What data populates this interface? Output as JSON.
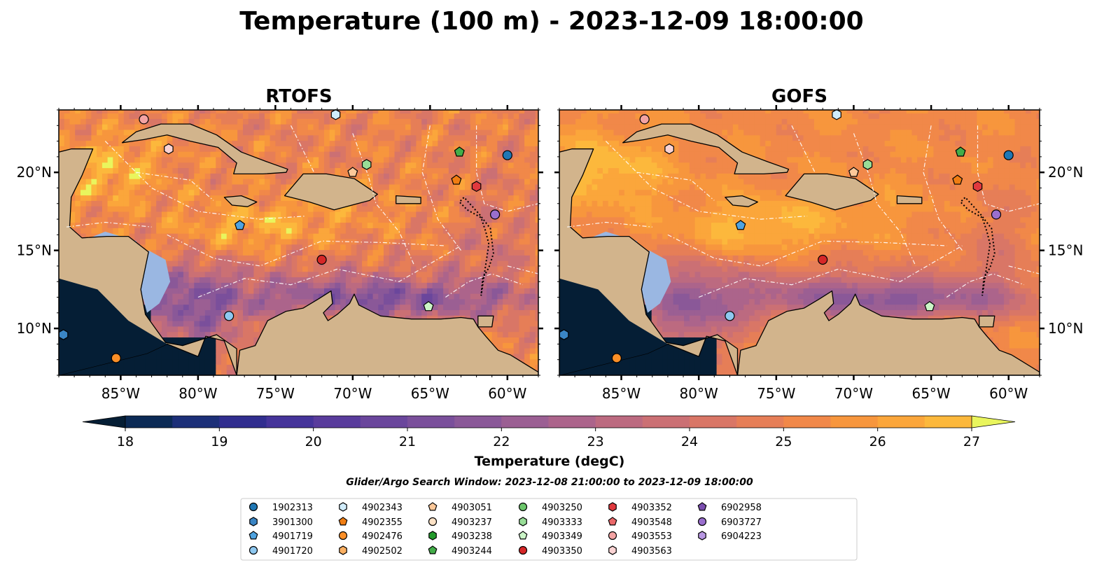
{
  "title": "Temperature (100 m) - 2023-12-09 18:00:00",
  "panels": [
    {
      "title": "RTOFS",
      "model": "rtofs"
    },
    {
      "title": "GOFS",
      "model": "gofs"
    }
  ],
  "map_extent": {
    "lon": [
      -89,
      -58
    ],
    "lat": [
      7,
      24
    ]
  },
  "lon_ticks": [
    {
      "value": -85,
      "label": "85°W"
    },
    {
      "value": -80,
      "label": "80°W"
    },
    {
      "value": -75,
      "label": "75°W"
    },
    {
      "value": -70,
      "label": "70°W"
    },
    {
      "value": -65,
      "label": "65°W"
    },
    {
      "value": -60,
      "label": "60°W"
    }
  ],
  "lat_ticks": [
    {
      "value": 10,
      "label": "10°N"
    },
    {
      "value": 15,
      "label": "15°N"
    },
    {
      "value": 20,
      "label": "20°N"
    }
  ],
  "colorbar": {
    "label": "Temperature (degC)",
    "min": 18,
    "max": 27,
    "step": 0.5,
    "ticks": [
      {
        "value": 18,
        "label": "18"
      },
      {
        "value": 19,
        "label": "19"
      },
      {
        "value": 20,
        "label": "20"
      },
      {
        "value": 21,
        "label": "21"
      },
      {
        "value": 22,
        "label": "22"
      },
      {
        "value": 23,
        "label": "23"
      },
      {
        "value": 24,
        "label": "24"
      },
      {
        "value": 25,
        "label": "25"
      },
      {
        "value": 26,
        "label": "26"
      },
      {
        "value": 27,
        "label": "27"
      }
    ],
    "colors": [
      "#051e35",
      "#0b2a55",
      "#1c2f78",
      "#312e8f",
      "#45349a",
      "#593c9c",
      "#6a469c",
      "#7a4f9b",
      "#8a5898",
      "#9b5f93",
      "#ac648b",
      "#bc6a80",
      "#cb7074",
      "#d97666",
      "#e67e57",
      "#f18849",
      "#f7963d",
      "#fba63b",
      "#fcb83c",
      "#fbcb40",
      "#f6df4a",
      "#e9f55d"
    ],
    "under_color": "#051e35",
    "over_color": "#e9f55d"
  },
  "colors": {
    "land": "#d2b48c",
    "shallow": "#9ab7e2",
    "deep_pacific": "#051e35"
  },
  "search_window": "Glider/Argo Search Window: 2023-12-08 21:00:00 to 2023-12-09 18:00:00",
  "legend": [
    {
      "id": "1902313",
      "color": "#1f77b4",
      "marker": "circle"
    },
    {
      "id": "3901300",
      "color": "#3a85c4",
      "marker": "hexagon"
    },
    {
      "id": "4901719",
      "color": "#4fa3e0",
      "marker": "pentagon"
    },
    {
      "id": "4901720",
      "color": "#8ec8f0",
      "marker": "circle"
    },
    {
      "id": "4902343",
      "color": "#d0ecfb",
      "marker": "hexagon"
    },
    {
      "id": "4902355",
      "color": "#f07d12",
      "marker": "pentagon"
    },
    {
      "id": "4902476",
      "color": "#fb8f27",
      "marker": "circle"
    },
    {
      "id": "4902502",
      "color": "#fbb062",
      "marker": "hexagon"
    },
    {
      "id": "4903051",
      "color": "#fcc899",
      "marker": "pentagon"
    },
    {
      "id": "4903237",
      "color": "#fde2c6",
      "marker": "circle"
    },
    {
      "id": "4903238",
      "color": "#239b2b",
      "marker": "hexagon"
    },
    {
      "id": "4903244",
      "color": "#43ad49",
      "marker": "pentagon"
    },
    {
      "id": "4903250",
      "color": "#6cc66b",
      "marker": "circle"
    },
    {
      "id": "4903333",
      "color": "#98dd97",
      "marker": "hexagon"
    },
    {
      "id": "4903349",
      "color": "#cbf5c7",
      "marker": "pentagon"
    },
    {
      "id": "4903350",
      "color": "#d62728",
      "marker": "circle"
    },
    {
      "id": "4903352",
      "color": "#e0393e",
      "marker": "hexagon"
    },
    {
      "id": "4903548",
      "color": "#ea6869",
      "marker": "pentagon"
    },
    {
      "id": "4903553",
      "color": "#f3a3a3",
      "marker": "circle"
    },
    {
      "id": "4903563",
      "color": "#fad3d3",
      "marker": "hexagon"
    },
    {
      "id": "6902958",
      "color": "#7b4eaf",
      "marker": "pentagon"
    },
    {
      "id": "6903727",
      "color": "#9a6fce",
      "marker": "circle"
    },
    {
      "id": "6904223",
      "color": "#b897e2",
      "marker": "hexagon"
    }
  ],
  "observations": [
    {
      "id": "1902313",
      "lon": -60.0,
      "lat": 21.1
    },
    {
      "id": "3901300",
      "lon": -88.7,
      "lat": 9.6
    },
    {
      "id": "4901719",
      "lon": -77.3,
      "lat": 16.6
    },
    {
      "id": "4901720",
      "lon": -78.0,
      "lat": 10.8
    },
    {
      "id": "4902343",
      "lon": -71.1,
      "lat": 23.7
    },
    {
      "id": "4902355",
      "lon": -63.3,
      "lat": 19.5
    },
    {
      "id": "4902476",
      "lon": -85.3,
      "lat": 8.1
    },
    {
      "id": "4903051",
      "lon": -70.0,
      "lat": 20.0
    },
    {
      "id": "4903333",
      "lon": -69.1,
      "lat": 20.5
    },
    {
      "id": "4903244",
      "lon": -63.1,
      "lat": 21.3
    },
    {
      "id": "4903349",
      "lon": -65.1,
      "lat": 11.4
    },
    {
      "id": "4903350",
      "lon": -72.0,
      "lat": 14.4
    },
    {
      "id": "4903352",
      "lon": -62.0,
      "lat": 19.1
    },
    {
      "id": "4903553",
      "lon": -83.5,
      "lat": 23.4
    },
    {
      "id": "4903563",
      "lon": -81.9,
      "lat": 21.5
    },
    {
      "id": "6903727",
      "lon": -60.8,
      "lat": 17.3
    }
  ]
}
